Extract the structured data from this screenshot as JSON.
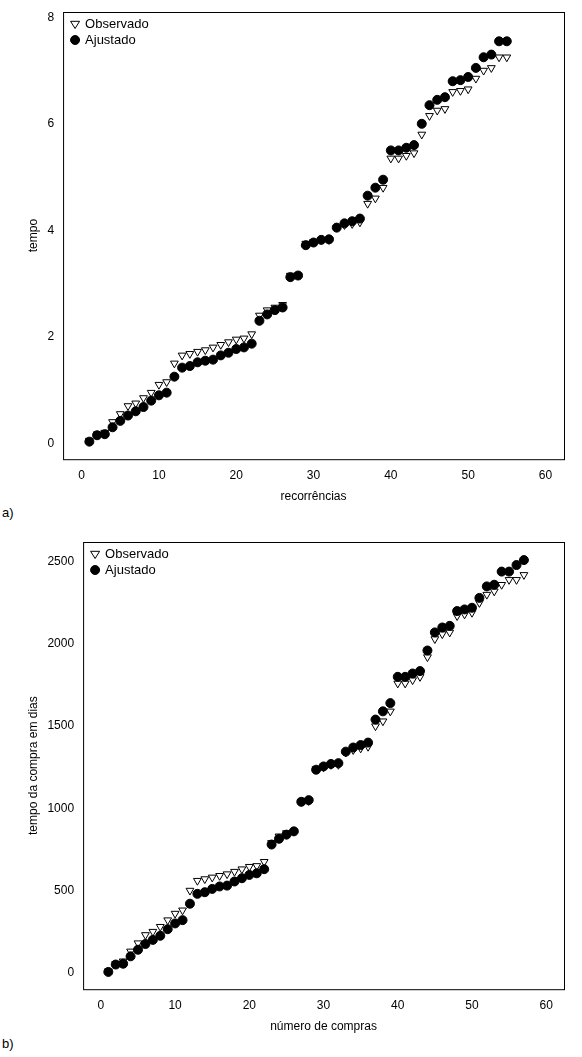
{
  "chart_data": [
    {
      "type": "scatter",
      "annotations": [
        "a)"
      ],
      "x_label": "recorrências",
      "y_label": "tempo",
      "x": [
        1,
        2,
        3,
        4,
        5,
        6,
        7,
        8,
        9,
        10,
        11,
        12,
        13,
        14,
        15,
        16,
        17,
        18,
        19,
        20,
        21,
        22,
        23,
        24,
        25,
        26,
        27,
        28,
        29,
        30,
        31,
        32,
        33,
        34,
        35,
        36,
        37,
        38,
        39,
        40,
        41,
        42,
        43,
        44,
        45,
        46,
        47,
        48,
        49,
        50,
        51,
        52,
        53,
        54,
        55
      ],
      "series": [
        {
          "name": "Observado",
          "color": "#000000",
          "marker": "triangle-down-open",
          "values": [
            0.05,
            0.17,
            0.2,
            0.4,
            0.55,
            0.7,
            0.75,
            0.85,
            0.95,
            1.1,
            1.15,
            1.5,
            1.65,
            1.68,
            1.72,
            1.75,
            1.8,
            1.85,
            1.9,
            1.95,
            1.97,
            2.05,
            2.4,
            2.5,
            2.55,
            2.6,
            3.15,
            3.15,
            3.75,
            3.78,
            3.82,
            3.82,
            4.05,
            4.1,
            4.12,
            4.15,
            4.5,
            4.6,
            4.8,
            5.35,
            5.35,
            5.4,
            5.45,
            5.8,
            6.15,
            6.25,
            6.28,
            6.6,
            6.62,
            6.65,
            6.85,
            7.0,
            7.05,
            7.25,
            7.25
          ]
        },
        {
          "name": "Ajustado",
          "color": "#000000",
          "marker": "circle",
          "values": [
            0.03,
            0.15,
            0.17,
            0.3,
            0.42,
            0.52,
            0.6,
            0.68,
            0.8,
            0.9,
            0.95,
            1.25,
            1.42,
            1.45,
            1.52,
            1.55,
            1.57,
            1.65,
            1.7,
            1.77,
            1.8,
            1.87,
            2.3,
            2.42,
            2.5,
            2.55,
            3.12,
            3.15,
            3.72,
            3.77,
            3.82,
            3.83,
            4.05,
            4.13,
            4.17,
            4.22,
            4.65,
            4.8,
            4.95,
            5.5,
            5.5,
            5.55,
            5.6,
            6.0,
            6.35,
            6.45,
            6.5,
            6.8,
            6.82,
            6.88,
            7.05,
            7.25,
            7.3,
            7.55,
            7.55
          ]
        }
      ],
      "xlim": [
        -2.4,
        62.4
      ],
      "xticks": [
        0,
        10,
        20,
        30,
        40,
        50,
        60
      ],
      "ylim": [
        -0.3,
        8.1
      ],
      "yticks": [
        0,
        2,
        4,
        6,
        8
      ],
      "grid": false,
      "legend": "top-left"
    },
    {
      "type": "scatter",
      "annotations": [
        "b)"
      ],
      "x_label": "número de compras",
      "y_label": "tempo da compra em dias",
      "x": [
        1,
        2,
        3,
        4,
        5,
        6,
        7,
        8,
        9,
        10,
        11,
        12,
        13,
        14,
        15,
        16,
        17,
        18,
        19,
        20,
        21,
        22,
        23,
        24,
        25,
        26,
        27,
        28,
        29,
        30,
        31,
        32,
        33,
        34,
        35,
        36,
        37,
        38,
        39,
        40,
        41,
        42,
        43,
        44,
        45,
        46,
        47,
        48,
        49,
        50,
        51,
        52,
        53,
        54,
        55,
        56,
        57
      ],
      "series": [
        {
          "name": "Observado",
          "color": "#000000",
          "marker": "triangle-down-open",
          "values": [
            10,
            55,
            70,
            130,
            180,
            230,
            250,
            280,
            320,
            360,
            380,
            500,
            560,
            570,
            580,
            590,
            600,
            615,
            630,
            645,
            650,
            675,
            790,
            830,
            850,
            860,
            1040,
            1045,
            1240,
            1250,
            1265,
            1265,
            1340,
            1355,
            1365,
            1375,
            1500,
            1530,
            1590,
            1760,
            1760,
            1780,
            1800,
            1920,
            2030,
            2060,
            2070,
            2170,
            2180,
            2190,
            2250,
            2300,
            2320,
            2360,
            2390,
            2390,
            2420
          ]
        },
        {
          "name": "Ajustado",
          "color": "#000000",
          "marker": "circle",
          "values": [
            5,
            50,
            55,
            100,
            140,
            175,
            200,
            225,
            265,
            300,
            320,
            420,
            480,
            490,
            510,
            525,
            530,
            555,
            575,
            595,
            605,
            630,
            780,
            815,
            840,
            860,
            1040,
            1050,
            1235,
            1255,
            1270,
            1275,
            1345,
            1370,
            1385,
            1400,
            1540,
            1590,
            1640,
            1800,
            1800,
            1820,
            1835,
            1960,
            2070,
            2100,
            2110,
            2200,
            2210,
            2220,
            2280,
            2350,
            2360,
            2440,
            2440,
            2480,
            2510
          ]
        }
      ],
      "xlim": [
        -2.4,
        62.4
      ],
      "xticks": [
        0,
        10,
        20,
        30,
        40,
        50,
        60
      ],
      "ylim": [
        -100,
        2620
      ],
      "yticks": [
        0,
        500,
        1000,
        1500,
        2000,
        2500
      ],
      "grid": false,
      "legend": "top-left"
    }
  ]
}
